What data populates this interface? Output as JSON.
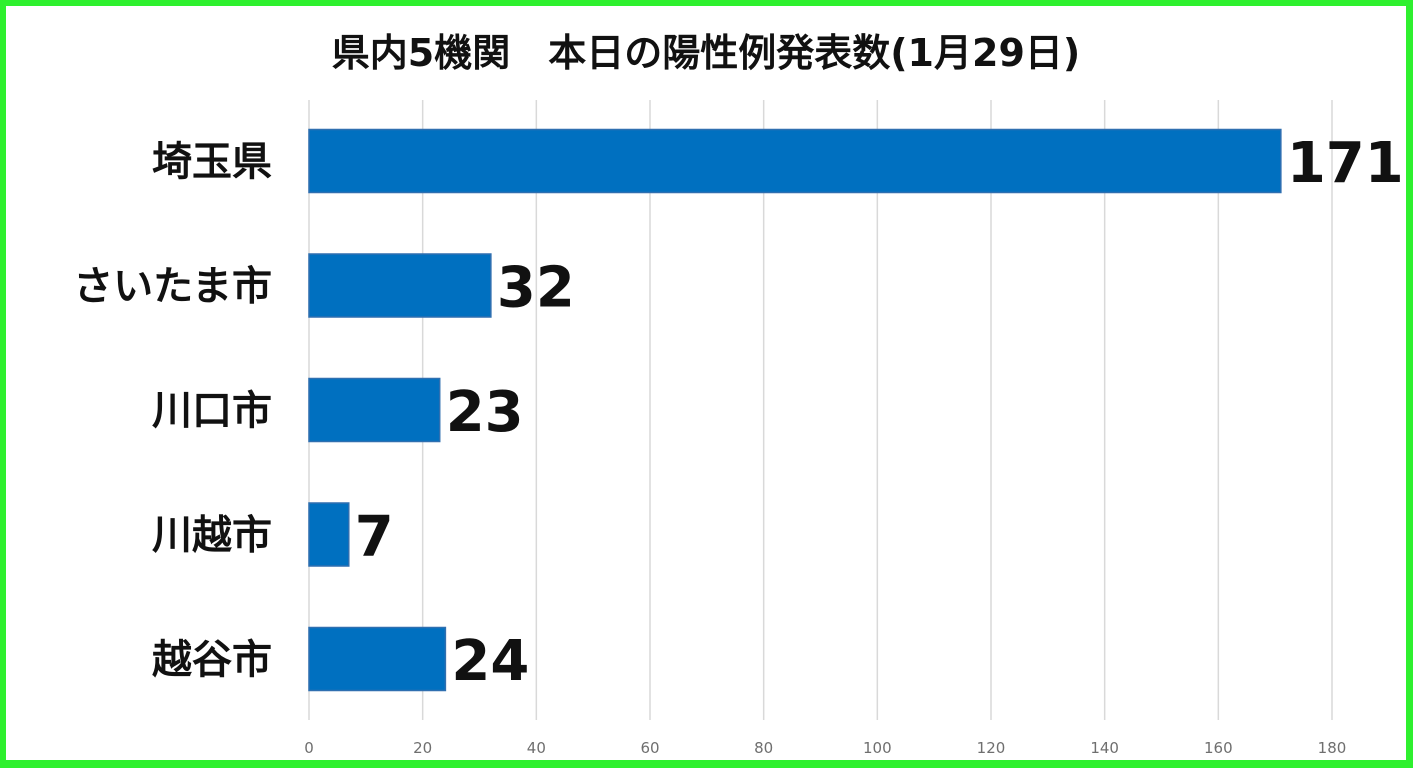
{
  "chart_data": {
    "type": "bar",
    "orientation": "horizontal",
    "title": "県内5機関　本日の陽性例発表数(1月29日)",
    "categories": [
      "埼玉県",
      "さいたま市",
      "川口市",
      "川越市",
      "越谷市"
    ],
    "values": [
      171,
      32,
      23,
      7,
      24
    ],
    "data_labels": [
      "171",
      "32",
      "23",
      "7",
      "24"
    ],
    "xlim": [
      0,
      180
    ],
    "x_ticks": [
      0,
      20,
      40,
      60,
      80,
      100,
      120,
      140,
      160,
      180
    ],
    "x_tick_labels": [
      "0",
      "20",
      "40",
      "60",
      "80",
      "100",
      "120",
      "140",
      "160",
      "180"
    ],
    "grid": "vertical",
    "legend": "none",
    "bar_color": "#0070c0"
  },
  "colors": {
    "frame": "#2ef02e",
    "bar": "#0070c0",
    "gridline": "#d9d9d9"
  }
}
